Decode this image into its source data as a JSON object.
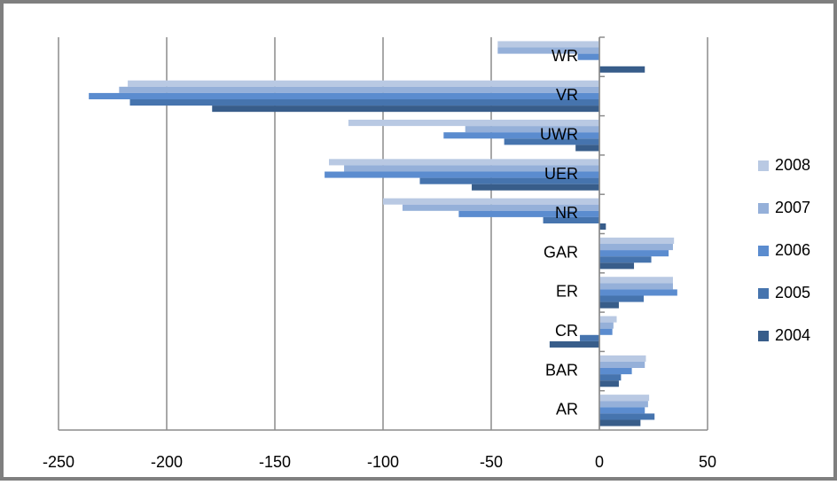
{
  "chart_data": {
    "type": "bar",
    "orientation": "horizontal",
    "categories": [
      "AR",
      "BAR",
      "CR",
      "ER",
      "GAR",
      "NR",
      "UER",
      "UWR",
      "VR",
      "WR"
    ],
    "series": [
      {
        "name": "2008",
        "color": "#b9c9e3",
        "values": [
          23,
          21.5,
          8,
          34,
          34.5,
          -100,
          -125,
          -116,
          -218,
          -47
        ]
      },
      {
        "name": "2007",
        "color": "#95b0d9",
        "values": [
          22.5,
          21,
          6.5,
          34,
          34,
          -91,
          -118,
          -62,
          -222,
          -47
        ]
      },
      {
        "name": "2006",
        "color": "#5b8ccf",
        "values": [
          21,
          15,
          6,
          36,
          32,
          -65,
          -127,
          -72,
          -236,
          -10
        ]
      },
      {
        "name": "2005",
        "color": "#4674ae",
        "values": [
          25.5,
          10,
          -9,
          20.5,
          24,
          -26,
          -83,
          -44,
          -217,
          0
        ]
      },
      {
        "name": "2004",
        "color": "#385d8a",
        "values": [
          19,
          9,
          -23,
          9,
          16,
          3,
          -59,
          -11,
          -179,
          21
        ]
      }
    ],
    "xlim": [
      -250,
      50
    ],
    "xticks": [
      -250,
      -200,
      -150,
      -100,
      -50,
      0,
      50
    ],
    "grid": true,
    "legend": "right"
  }
}
